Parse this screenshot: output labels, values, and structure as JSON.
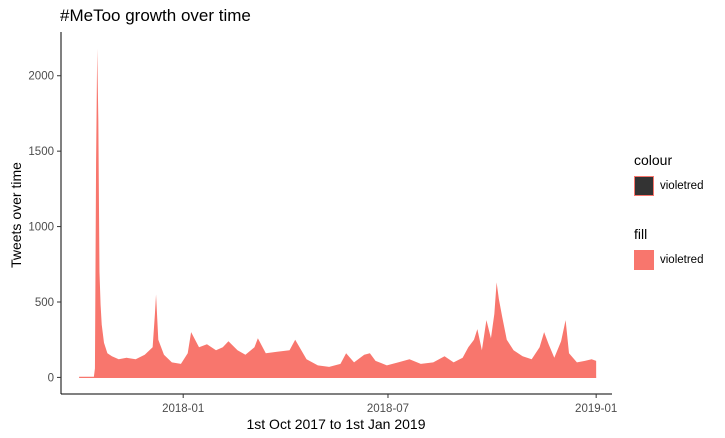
{
  "chart_data": {
    "type": "area",
    "title": "#MeToo growth over time",
    "xlabel": "1st Oct 2017 to 1st Jan 2019",
    "ylabel": "Tweets over time",
    "xlim": [
      "2017-09-15",
      "2019-01-15"
    ],
    "ylim": [
      -110,
      2290
    ],
    "x_ticks": [
      "2018-01",
      "2018-07",
      "2019-01"
    ],
    "x_tick_dates": [
      "2018-01-01",
      "2018-07-01",
      "2019-01-01"
    ],
    "y_ticks": [
      0,
      500,
      1000,
      1500,
      2000
    ],
    "grid": false,
    "colors": {
      "fill": "#F8766D",
      "colour_key_fill": "#333333",
      "colour_key_border": "#F8766D"
    },
    "series": [
      {
        "name": "violetred",
        "points": [
          [
            "2017-10-01",
            0
          ],
          [
            "2017-10-14",
            0
          ],
          [
            "2017-10-15",
            60
          ],
          [
            "2017-10-16",
            1420
          ],
          [
            "2017-10-17",
            2180
          ],
          [
            "2017-10-18",
            1700
          ],
          [
            "2017-10-19",
            700
          ],
          [
            "2017-10-20",
            480
          ],
          [
            "2017-10-21",
            350
          ],
          [
            "2017-10-23",
            230
          ],
          [
            "2017-10-26",
            160
          ],
          [
            "2017-10-30",
            140
          ],
          [
            "2017-11-05",
            120
          ],
          [
            "2017-11-12",
            130
          ],
          [
            "2017-11-20",
            120
          ],
          [
            "2017-11-28",
            150
          ],
          [
            "2017-12-05",
            200
          ],
          [
            "2017-12-07",
            420
          ],
          [
            "2017-12-08",
            550
          ],
          [
            "2017-12-10",
            250
          ],
          [
            "2017-12-15",
            150
          ],
          [
            "2017-12-22",
            100
          ],
          [
            "2017-12-30",
            90
          ],
          [
            "2018-01-05",
            160
          ],
          [
            "2018-01-08",
            300
          ],
          [
            "2018-01-15",
            200
          ],
          [
            "2018-01-22",
            220
          ],
          [
            "2018-01-30",
            180
          ],
          [
            "2018-02-05",
            200
          ],
          [
            "2018-02-10",
            240
          ],
          [
            "2018-02-18",
            180
          ],
          [
            "2018-02-25",
            150
          ],
          [
            "2018-03-05",
            200
          ],
          [
            "2018-03-08",
            260
          ],
          [
            "2018-03-15",
            160
          ],
          [
            "2018-03-25",
            170
          ],
          [
            "2018-04-05",
            180
          ],
          [
            "2018-04-10",
            250
          ],
          [
            "2018-04-20",
            120
          ],
          [
            "2018-04-30",
            80
          ],
          [
            "2018-05-10",
            70
          ],
          [
            "2018-05-20",
            90
          ],
          [
            "2018-05-25",
            160
          ],
          [
            "2018-06-01",
            100
          ],
          [
            "2018-06-10",
            150
          ],
          [
            "2018-06-15",
            160
          ],
          [
            "2018-06-20",
            110
          ],
          [
            "2018-06-30",
            80
          ],
          [
            "2018-07-10",
            100
          ],
          [
            "2018-07-20",
            120
          ],
          [
            "2018-07-30",
            90
          ],
          [
            "2018-08-10",
            100
          ],
          [
            "2018-08-20",
            140
          ],
          [
            "2018-08-28",
            100
          ],
          [
            "2018-09-05",
            130
          ],
          [
            "2018-09-10",
            200
          ],
          [
            "2018-09-15",
            250
          ],
          [
            "2018-09-18",
            320
          ],
          [
            "2018-09-22",
            180
          ],
          [
            "2018-09-26",
            380
          ],
          [
            "2018-09-30",
            260
          ],
          [
            "2018-10-03",
            420
          ],
          [
            "2018-10-05",
            630
          ],
          [
            "2018-10-07",
            520
          ],
          [
            "2018-10-10",
            400
          ],
          [
            "2018-10-14",
            250
          ],
          [
            "2018-10-20",
            180
          ],
          [
            "2018-10-28",
            140
          ],
          [
            "2018-11-05",
            120
          ],
          [
            "2018-11-12",
            200
          ],
          [
            "2018-11-16",
            300
          ],
          [
            "2018-11-20",
            220
          ],
          [
            "2018-11-25",
            130
          ],
          [
            "2018-12-01",
            240
          ],
          [
            "2018-12-05",
            380
          ],
          [
            "2018-12-08",
            160
          ],
          [
            "2018-12-15",
            100
          ],
          [
            "2018-12-22",
            110
          ],
          [
            "2018-12-28",
            120
          ],
          [
            "2019-01-01",
            110
          ]
        ]
      }
    ],
    "legend": {
      "placement": "right",
      "groups": [
        {
          "title": "colour",
          "label": "violetred"
        },
        {
          "title": "fill",
          "label": "violetred"
        }
      ]
    }
  }
}
